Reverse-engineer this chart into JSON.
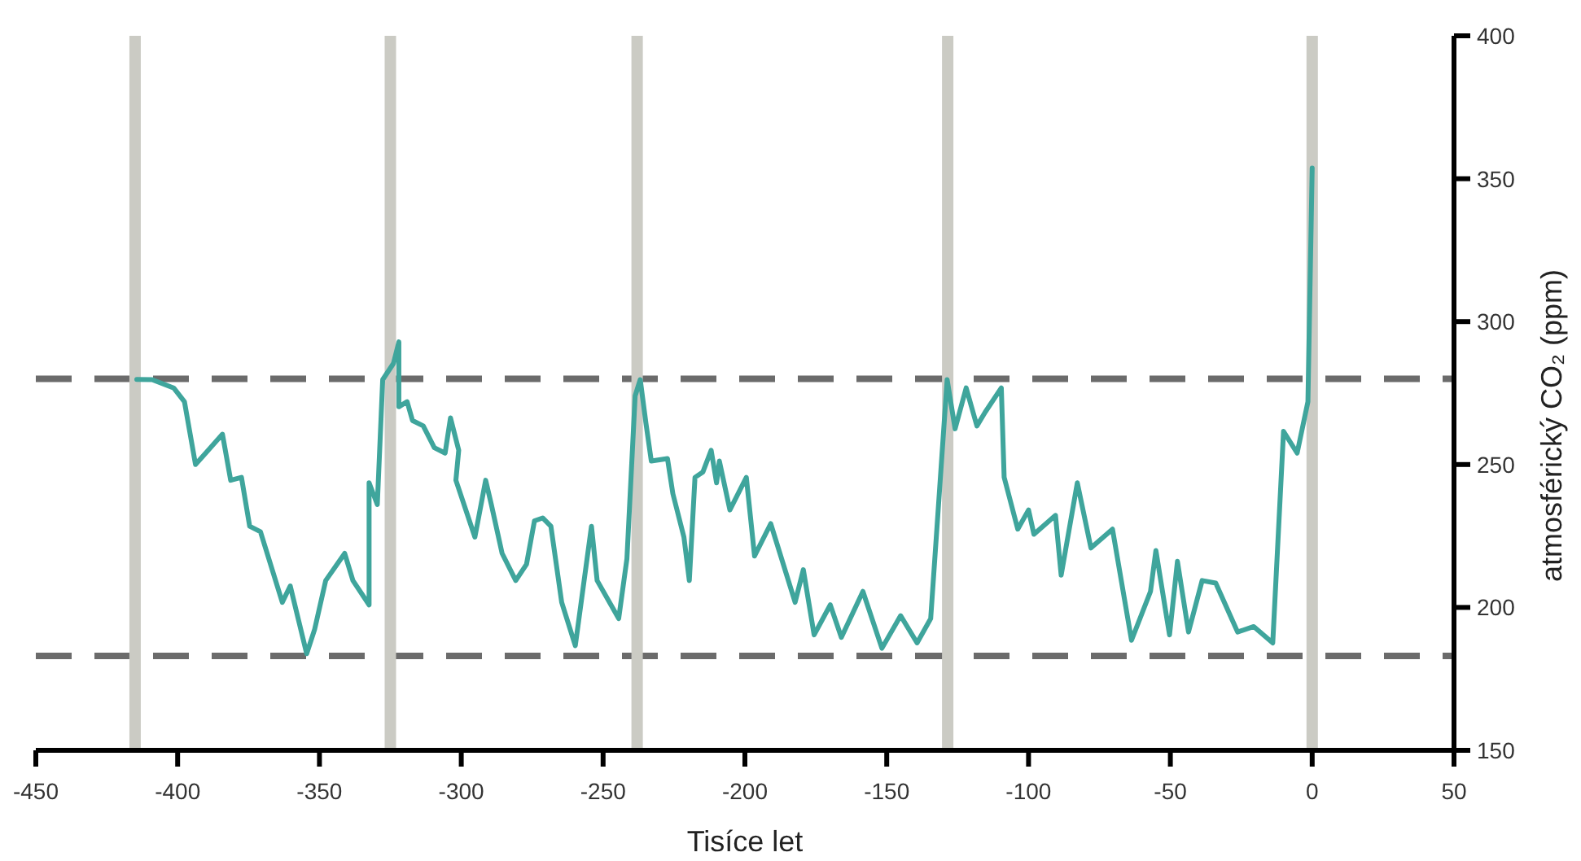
{
  "chart_data": {
    "type": "line",
    "xlabel": "Tisíce let",
    "ylabel": "atmosférický CO₂ (ppm)",
    "xlim": [
      -450,
      50
    ],
    "xticks": [
      -450,
      -400,
      -350,
      -300,
      -250,
      -200,
      -150,
      -100,
      -50,
      0,
      50
    ],
    "ylim": [
      150,
      400
    ],
    "yticks": [
      150,
      200,
      250,
      300,
      350,
      400
    ],
    "grid": false,
    "marker": "none",
    "ref_lines": [
      {
        "axis": "y",
        "value": 280,
        "color": "#6b6b6b",
        "line_style": "dashed"
      },
      {
        "axis": "y",
        "value": 183,
        "color": "#6b6b6b",
        "line_style": "dashed"
      },
      {
        "axis": "x",
        "value": -415,
        "color": "#cbcbc4"
      },
      {
        "axis": "x",
        "value": -325,
        "color": "#cbcbc4"
      },
      {
        "axis": "x",
        "value": -238,
        "color": "#cbcbc4"
      },
      {
        "axis": "x",
        "value": -128.5,
        "color": "#cbcbc4"
      },
      {
        "axis": "x",
        "value": 0,
        "color": "#cbcbc4"
      }
    ],
    "series": [
      {
        "color": "#3fa59c",
        "line_style": "solid",
        "x": [
          -414.4,
          -409,
          -401.4,
          -397.6,
          -393.7,
          -384.2,
          -381.3,
          -377.5,
          -374.6,
          -370.8,
          -363.1,
          -360.3,
          -354.5,
          -351.7,
          -347.8,
          -341.1,
          -338.2,
          -332.5,
          -332.5,
          -329.6,
          -327.7,
          -323.9,
          -322,
          -322,
          -319.1,
          -317.2,
          -313.4,
          -309.5,
          -305.7,
          -303.8,
          -300.9,
          -301.9,
          -295.2,
          -291.4,
          -289.4,
          -285.6,
          -280.8,
          -277,
          -274.2,
          -271.3,
          -268.4,
          -264.6,
          -259.8,
          -254.1,
          -252.1,
          -244.5,
          -241.6,
          -238.7,
          -236.9,
          -234.9,
          -233,
          -227.3,
          -225.4,
          -221.5,
          -219.6,
          -217.6,
          -214.8,
          -211.9,
          -210,
          -209,
          -205.3,
          -199.5,
          -196.6,
          -190.9,
          -182.3,
          -179.4,
          -175.6,
          -169.9,
          -166,
          -158.4,
          -151.7,
          -145.1,
          -139.3,
          -134.5,
          -128.7,
          -125.9,
          -122,
          -118.2,
          -115.3,
          -109.6,
          -108.6,
          -103.8,
          -100,
          -98.1,
          -90.5,
          -88.5,
          -82.8,
          -78,
          -70.4,
          -63.7,
          -57,
          -55.1,
          -50.3,
          -47.5,
          -43.6,
          -38.8,
          -34,
          -26.3,
          -20.6,
          -13.9,
          -10.1,
          -5.3,
          -1.5,
          0
        ],
        "values": [
          279.8,
          279.7,
          276.8,
          272,
          250,
          260.6,
          244.5,
          245.5,
          228.4,
          226.5,
          201.8,
          207.5,
          183.8,
          192.3,
          209.4,
          218.9,
          209.4,
          200.9,
          243.6,
          236,
          279.7,
          285.4,
          292.9,
          270.2,
          272,
          265.4,
          263.5,
          255.9,
          254,
          266.3,
          255,
          244.5,
          224.6,
          244.5,
          236,
          218.9,
          209.4,
          215.1,
          230.3,
          231.3,
          228.4,
          201.8,
          186.6,
          228.4,
          209.4,
          196.1,
          217,
          274,
          279.7,
          264.5,
          251.2,
          252.1,
          239.8,
          224.6,
          209.4,
          245.5,
          247.4,
          255,
          243.6,
          251.2,
          234.1,
          245.5,
          218,
          229.3,
          201.8,
          213.2,
          190.4,
          200.9,
          189.5,
          205.6,
          185.7,
          197.1,
          187.6,
          196.1,
          279.7,
          262.5,
          276.8,
          263.5,
          268.3,
          276.8,
          245.5,
          227.4,
          234.1,
          225.6,
          232.2,
          211.3,
          243.6,
          220.8,
          227.4,
          188.5,
          205.6,
          219.9,
          190.4,
          216.1,
          191.4,
          209.4,
          208.5,
          191.4,
          193.3,
          187.6,
          261.6,
          254,
          272,
          353.7
        ]
      }
    ]
  }
}
